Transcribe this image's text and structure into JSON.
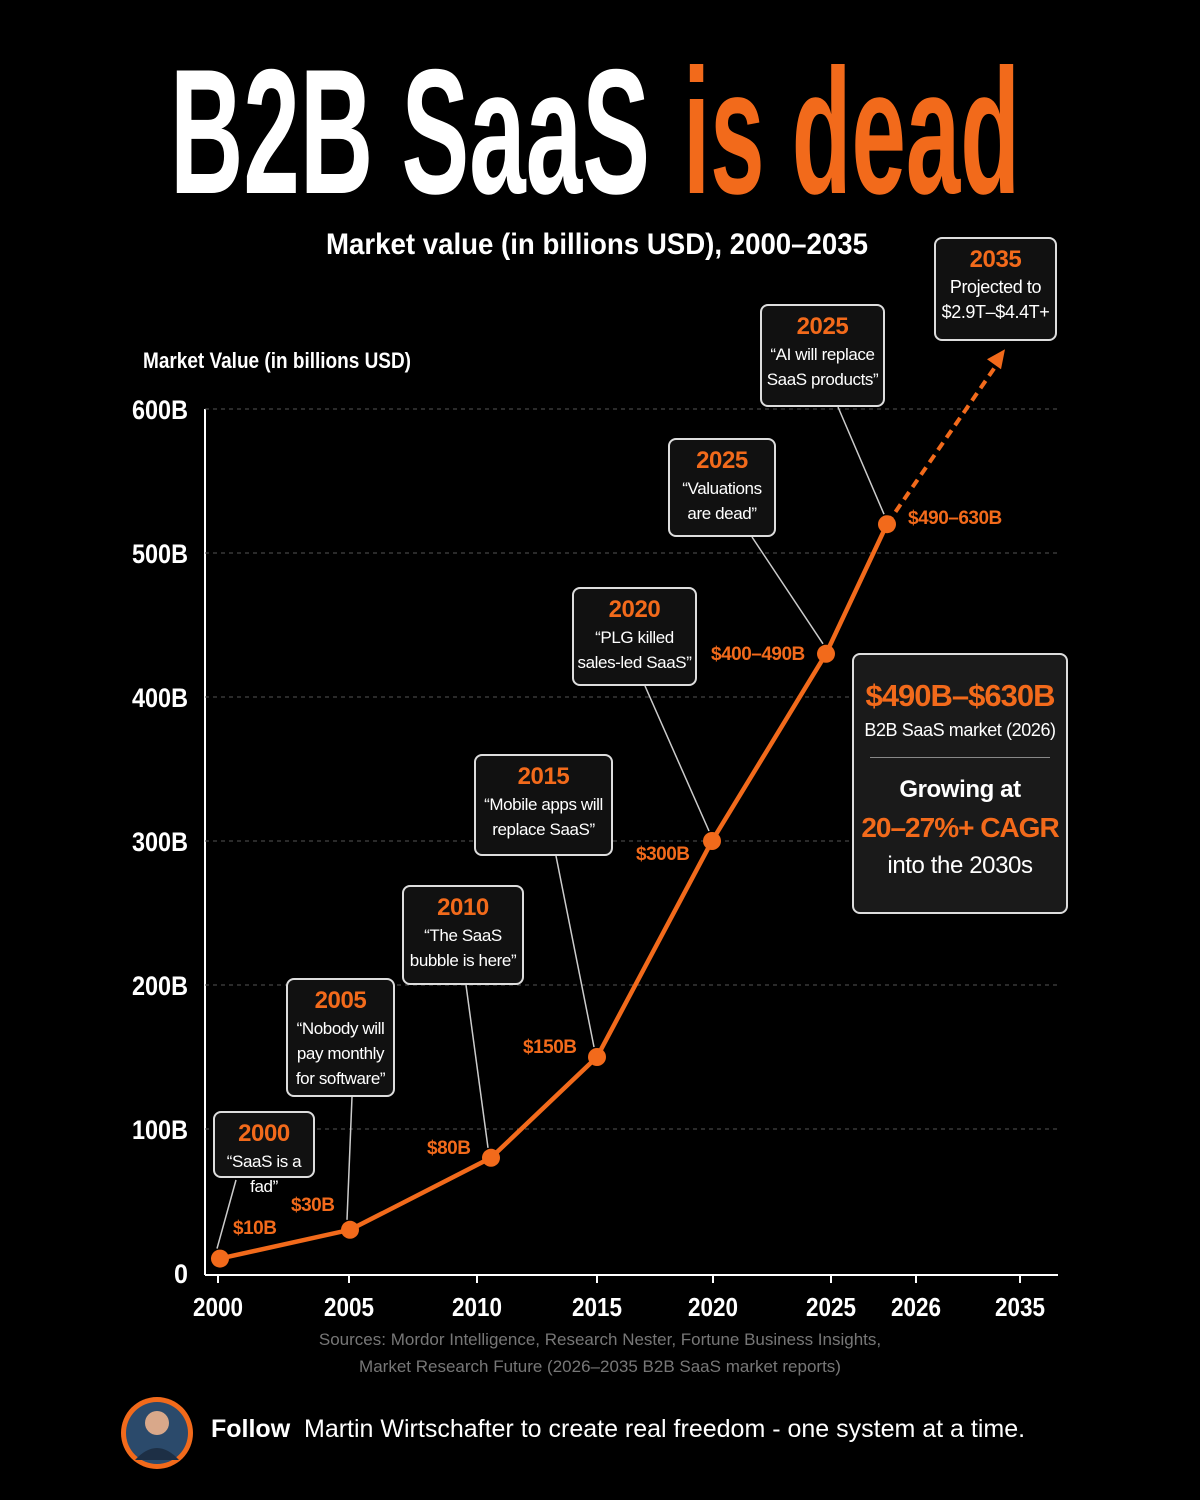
{
  "chart_data": {
    "type": "line",
    "title": "B2B SaaS",
    "title_highlight": "is dead",
    "subtitle": "Market value (in billions USD), 2000–2035",
    "y_label": "Market Value (in billions USD)",
    "categories": [
      "2000",
      "2005",
      "2010",
      "2015",
      "2020",
      "2025",
      "2026",
      "2035"
    ],
    "values": [
      10,
      30,
      80,
      150,
      300,
      430,
      520,
      null
    ],
    "value_labels": [
      "$10B",
      "$30B",
      "$80B",
      "$150B",
      "$300B",
      "$400–490B",
      "$490–630B",
      null
    ],
    "color": "#f26a1b",
    "ylim": [
      0,
      600
    ],
    "yticks": [
      0,
      {
        "value": 100,
        "label": "100B"
      },
      {
        "value": 200,
        "label": "200B"
      },
      {
        "value": 300,
        "label": "300B"
      },
      {
        "value": 400,
        "label": "400B"
      },
      {
        "value": 500,
        "label": "500B"
      },
      {
        "value": 600,
        "label": "600B"
      }
    ],
    "grid": true,
    "annotations": [
      {
        "year": "2000",
        "text": "“SaaS is a fad”"
      },
      {
        "year": "2005",
        "text": "“Nobody will\npay monthly\nfor software”"
      },
      {
        "year": "2010",
        "text": "“The SaaS\nbubble is here”"
      },
      {
        "year": "2015",
        "text": "“Mobile apps will\nreplace SaaS”"
      },
      {
        "year": "2020",
        "text": "“PLG killed\nsales-led SaaS”"
      },
      {
        "year": "2025",
        "text": "“Valuations\nare dead”"
      },
      {
        "year": "2025",
        "text": "“AI will replace\nSaaS products”"
      }
    ],
    "projection": {
      "year": "2035",
      "text": "Projected to\n$2.9T–$4.4T+"
    },
    "summary": {
      "range": "$490B–$630B",
      "label": "B2B SaaS market (2026)",
      "growth_intro": "Growing at",
      "growth": "20–27%+ CAGR",
      "growth_outro": "into the 2030s"
    },
    "sources": "Sources: Mordor Intelligence, Research Nester, Fortune Business Insights,\nMarket Research Future (2026–2035 B2B SaaS market reports)"
  },
  "footer": {
    "follow": "Follow",
    "text": "Martin Wirtschafter to create real freedom - one system at a time."
  }
}
